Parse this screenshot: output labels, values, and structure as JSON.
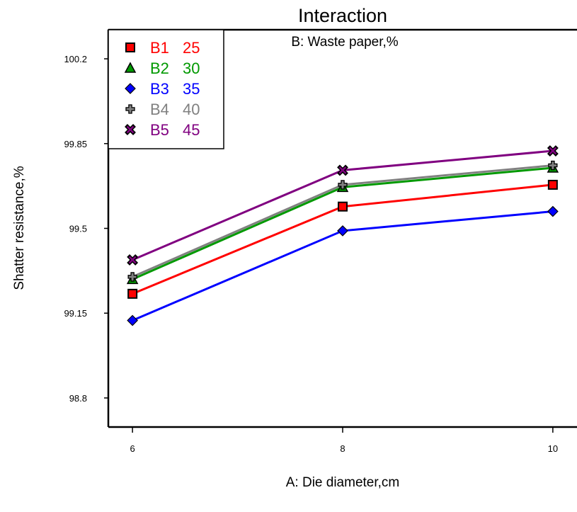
{
  "chart_data": {
    "type": "line",
    "title": "Interaction",
    "subtitle": "B: Waste paper,%",
    "xlabel": "A: Die diameter,cm",
    "ylabel": "Shatter resistance,%",
    "x": [
      6,
      8,
      10
    ],
    "x_ticks": [
      "6",
      "8",
      "10"
    ],
    "y_ticks": [
      "98.8",
      "99.15",
      "99.5",
      "99.85",
      "100.2"
    ],
    "y_tick_values": [
      98.8,
      99.15,
      99.5,
      99.85,
      100.2
    ],
    "xlim": [
      5.77,
      10.23
    ],
    "ylim": [
      98.68,
      100.32
    ],
    "grid": false,
    "legend_position": "top-left",
    "series": [
      {
        "name": "B1",
        "level": "25",
        "color": "#ff0000",
        "marker": "square",
        "values": [
          99.23,
          99.59,
          99.68
        ]
      },
      {
        "name": "B2",
        "level": "30",
        "color": "#009900",
        "marker": "triangle",
        "values": [
          99.29,
          99.67,
          99.75
        ]
      },
      {
        "name": "B3",
        "level": "35",
        "color": "#0000ff",
        "marker": "diamond",
        "values": [
          99.12,
          99.49,
          99.57
        ]
      },
      {
        "name": "B4",
        "level": "40",
        "color": "#808080",
        "marker": "plus",
        "values": [
          99.3,
          99.68,
          99.76
        ]
      },
      {
        "name": "B5",
        "level": "45",
        "color": "#800080",
        "marker": "cross",
        "values": [
          99.37,
          99.74,
          99.82
        ]
      }
    ]
  }
}
